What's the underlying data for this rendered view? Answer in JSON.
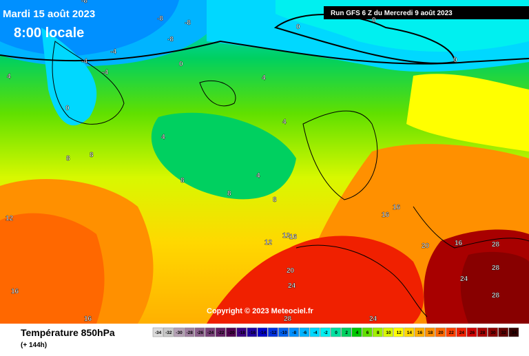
{
  "header": {
    "date": "Mardi 15 août 2023",
    "time": "8:00 locale",
    "run": "Run GFS 6 Z du Mercredi 9 août 2023"
  },
  "copyright": "Copyright © 2023 Meteociel.fr",
  "footer": {
    "title": "Température 850hPa",
    "subtitle": "(+ 144h)"
  },
  "scale": {
    "values": [
      -34,
      -32,
      -30,
      -28,
      -26,
      -24,
      -22,
      -20,
      -18,
      -16,
      -14,
      -12,
      -10,
      -8,
      -6,
      -4,
      -2,
      0,
      2,
      4,
      6,
      8,
      10,
      12,
      14,
      16,
      18,
      20,
      22,
      24,
      26,
      28,
      30,
      32,
      34
    ],
    "colors": [
      "#dcdcdc",
      "#c8c8c8",
      "#b4a0b4",
      "#a080a0",
      "#8c608c",
      "#784078",
      "#642064",
      "#500050",
      "#3c0080",
      "#2000a0",
      "#0000c8",
      "#0030e0",
      "#0060f0",
      "#0090ff",
      "#00b4ff",
      "#00d8ff",
      "#00f0f0",
      "#00e0a0",
      "#00d060",
      "#00c800",
      "#60e000",
      "#a0f000",
      "#d8f800",
      "#ffff00",
      "#ffd800",
      "#ffb000",
      "#ff9000",
      "#ff6800",
      "#ff4000",
      "#f02000",
      "#d00000",
      "#a80000",
      "#880000",
      "#600000",
      "#300000"
    ]
  },
  "map_labels": [
    -8,
    -8,
    -8,
    -4,
    -8,
    -4,
    0,
    -4,
    0,
    0,
    4,
    4,
    4,
    4,
    8,
    8,
    8,
    8,
    4,
    8,
    12,
    12,
    12,
    16,
    16,
    16,
    16,
    20,
    20,
    24,
    24,
    28,
    28,
    28,
    24,
    28,
    16,
    16,
    0,
    0
  ]
}
